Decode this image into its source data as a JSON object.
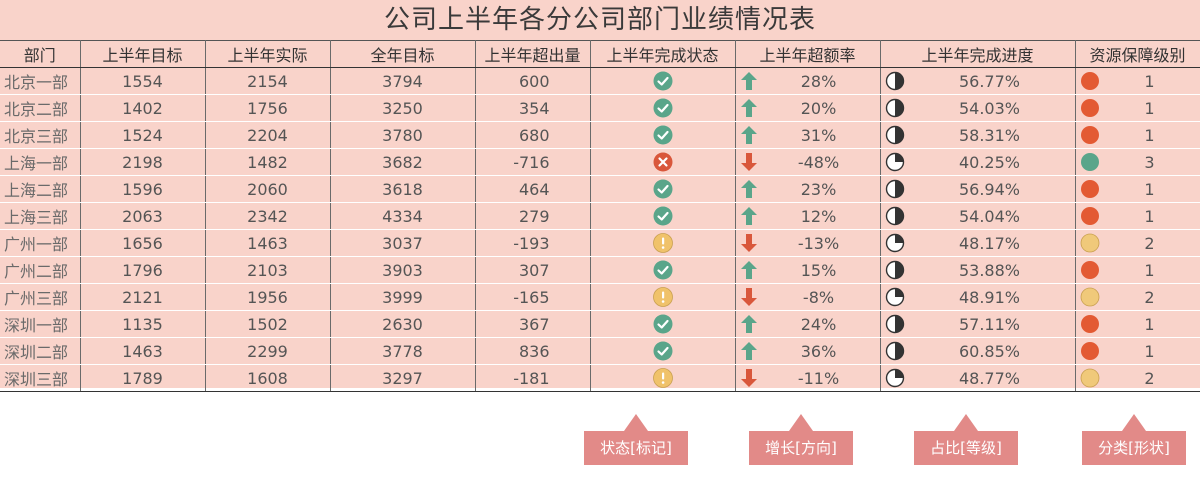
{
  "title": "公司上半年各分公司部门业绩情况表",
  "headers": [
    "部门",
    "上半年目标",
    "上半年实际",
    "全年目标",
    "上半年超出量",
    "上半年完成状态",
    "上半年超额率",
    "上半年完成进度",
    "资源保障级别"
  ],
  "colors": {
    "check": "#5aa58a",
    "cross": "#d9573b",
    "warn": "#f0c26a",
    "arrow_up": "#5aa58a",
    "arrow_down": "#d9573b",
    "dot_red": "#e35a33",
    "dot_green": "#5aa58a",
    "dot_yellow": "#f0c97a",
    "tag": "#e28a88"
  },
  "rows": [
    {
      "dept": "北京一部",
      "target_h1": "1554",
      "actual_h1": "2154",
      "target_year": "3794",
      "exceed": "600",
      "status": "check",
      "rate": "28%",
      "direction": "up",
      "progress": "56.77%",
      "pie": "half",
      "level": "1",
      "level_color": "red"
    },
    {
      "dept": "北京二部",
      "target_h1": "1402",
      "actual_h1": "1756",
      "target_year": "3250",
      "exceed": "354",
      "status": "check",
      "rate": "20%",
      "direction": "up",
      "progress": "54.03%",
      "pie": "half",
      "level": "1",
      "level_color": "red"
    },
    {
      "dept": "北京三部",
      "target_h1": "1524",
      "actual_h1": "2204",
      "target_year": "3780",
      "exceed": "680",
      "status": "check",
      "rate": "31%",
      "direction": "up",
      "progress": "58.31%",
      "pie": "half",
      "level": "1",
      "level_color": "red"
    },
    {
      "dept": "上海一部",
      "target_h1": "2198",
      "actual_h1": "1482",
      "target_year": "3682",
      "exceed": "-716",
      "status": "cross",
      "rate": "-48%",
      "direction": "down",
      "progress": "40.25%",
      "pie": "quarter",
      "level": "3",
      "level_color": "green"
    },
    {
      "dept": "上海二部",
      "target_h1": "1596",
      "actual_h1": "2060",
      "target_year": "3618",
      "exceed": "464",
      "status": "check",
      "rate": "23%",
      "direction": "up",
      "progress": "56.94%",
      "pie": "half",
      "level": "1",
      "level_color": "red"
    },
    {
      "dept": "上海三部",
      "target_h1": "2063",
      "actual_h1": "2342",
      "target_year": "4334",
      "exceed": "279",
      "status": "check",
      "rate": "12%",
      "direction": "up",
      "progress": "54.04%",
      "pie": "half",
      "level": "1",
      "level_color": "red"
    },
    {
      "dept": "广州一部",
      "target_h1": "1656",
      "actual_h1": "1463",
      "target_year": "3037",
      "exceed": "-193",
      "status": "warn",
      "rate": "-13%",
      "direction": "down",
      "progress": "48.17%",
      "pie": "quarter",
      "level": "2",
      "level_color": "yellow"
    },
    {
      "dept": "广州二部",
      "target_h1": "1796",
      "actual_h1": "2103",
      "target_year": "3903",
      "exceed": "307",
      "status": "check",
      "rate": "15%",
      "direction": "up",
      "progress": "53.88%",
      "pie": "half",
      "level": "1",
      "level_color": "red"
    },
    {
      "dept": "广州三部",
      "target_h1": "2121",
      "actual_h1": "1956",
      "target_year": "3999",
      "exceed": "-165",
      "status": "warn",
      "rate": "-8%",
      "direction": "down",
      "progress": "48.91%",
      "pie": "quarter",
      "level": "2",
      "level_color": "yellow"
    },
    {
      "dept": "深圳一部",
      "target_h1": "1135",
      "actual_h1": "1502",
      "target_year": "2630",
      "exceed": "367",
      "status": "check",
      "rate": "24%",
      "direction": "up",
      "progress": "57.11%",
      "pie": "half",
      "level": "1",
      "level_color": "red"
    },
    {
      "dept": "深圳二部",
      "target_h1": "1463",
      "actual_h1": "2299",
      "target_year": "3778",
      "exceed": "836",
      "status": "check",
      "rate": "36%",
      "direction": "up",
      "progress": "60.85%",
      "pie": "half",
      "level": "1",
      "level_color": "red"
    },
    {
      "dept": "深圳三部",
      "target_h1": "1789",
      "actual_h1": "1608",
      "target_year": "3297",
      "exceed": "-181",
      "status": "warn",
      "rate": "-11%",
      "direction": "down",
      "progress": "48.77%",
      "pie": "quarter",
      "level": "2",
      "level_color": "yellow"
    }
  ],
  "legend": [
    {
      "label": "状态[标记]"
    },
    {
      "label": "增长[方向]"
    },
    {
      "label": "占比[等级]"
    },
    {
      "label": "分类[形状]"
    }
  ]
}
